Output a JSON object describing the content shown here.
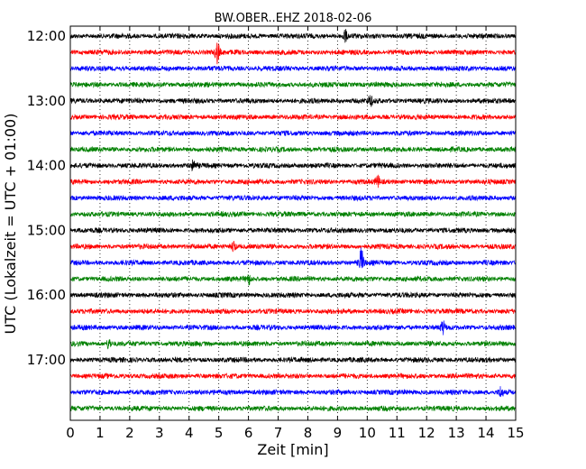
{
  "chart_data": {
    "type": "line",
    "title": "BW.OBER..EHZ 2018-02-06",
    "xlabel": "Zeit  [min]",
    "ylabel": "UTC (Lokalzeit = UTC + 01:00)",
    "xlim": [
      0,
      15
    ],
    "x_ticks": [
      "0",
      "1",
      "2",
      "3",
      "4",
      "5",
      "6",
      "7",
      "8",
      "9",
      "10",
      "11",
      "12",
      "13",
      "14",
      "15"
    ],
    "y_ticks": [
      "12:00",
      "13:00",
      "14:00",
      "15:00",
      "16:00",
      "17:00"
    ],
    "grid": "vertical dotted",
    "trace_interval_minutes": 15,
    "series_colors": [
      "#000000",
      "#ff0000",
      "#0000ff",
      "#008000"
    ],
    "traces": [
      {
        "start": "12:00",
        "color": "#000000"
      },
      {
        "start": "12:15",
        "color": "#ff0000"
      },
      {
        "start": "12:30",
        "color": "#0000ff"
      },
      {
        "start": "12:45",
        "color": "#008000"
      },
      {
        "start": "13:00",
        "color": "#000000"
      },
      {
        "start": "13:15",
        "color": "#ff0000"
      },
      {
        "start": "13:30",
        "color": "#0000ff"
      },
      {
        "start": "13:45",
        "color": "#008000"
      },
      {
        "start": "14:00",
        "color": "#000000"
      },
      {
        "start": "14:15",
        "color": "#ff0000"
      },
      {
        "start": "14:30",
        "color": "#0000ff"
      },
      {
        "start": "14:45",
        "color": "#008000"
      },
      {
        "start": "15:00",
        "color": "#000000"
      },
      {
        "start": "15:15",
        "color": "#ff0000"
      },
      {
        "start": "15:30",
        "color": "#0000ff"
      },
      {
        "start": "15:45",
        "color": "#008000"
      },
      {
        "start": "16:00",
        "color": "#000000"
      },
      {
        "start": "16:15",
        "color": "#ff0000"
      },
      {
        "start": "16:30",
        "color": "#0000ff"
      },
      {
        "start": "16:45",
        "color": "#008000"
      },
      {
        "start": "17:00",
        "color": "#000000"
      },
      {
        "start": "17:15",
        "color": "#ff0000"
      },
      {
        "start": "17:30",
        "color": "#0000ff"
      },
      {
        "start": "17:45",
        "color": "#008000"
      }
    ],
    "events": [
      {
        "trace": "12:15",
        "minute": 4.95,
        "amplitude": 2.4
      },
      {
        "trace": "15:30",
        "minute": 9.8,
        "amplitude": 3.0
      },
      {
        "trace": "15:15",
        "minute": 5.5,
        "amplitude": 1.2
      },
      {
        "trace": "14:15",
        "minute": 10.35,
        "amplitude": 1.2
      },
      {
        "trace": "12:00",
        "minute": 9.25,
        "amplitude": 1.3
      },
      {
        "trace": "13:00",
        "minute": 10.1,
        "amplitude": 1.2
      },
      {
        "trace": "16:30",
        "minute": 12.55,
        "amplitude": 1.3
      },
      {
        "trace": "17:30",
        "minute": 14.5,
        "amplitude": 1.2
      },
      {
        "trace": "14:00",
        "minute": 4.15,
        "amplitude": 1.1
      },
      {
        "trace": "15:45",
        "minute": 6.0,
        "amplitude": 1.1
      },
      {
        "trace": "16:45",
        "minute": 1.3,
        "amplitude": 1.1
      }
    ]
  }
}
